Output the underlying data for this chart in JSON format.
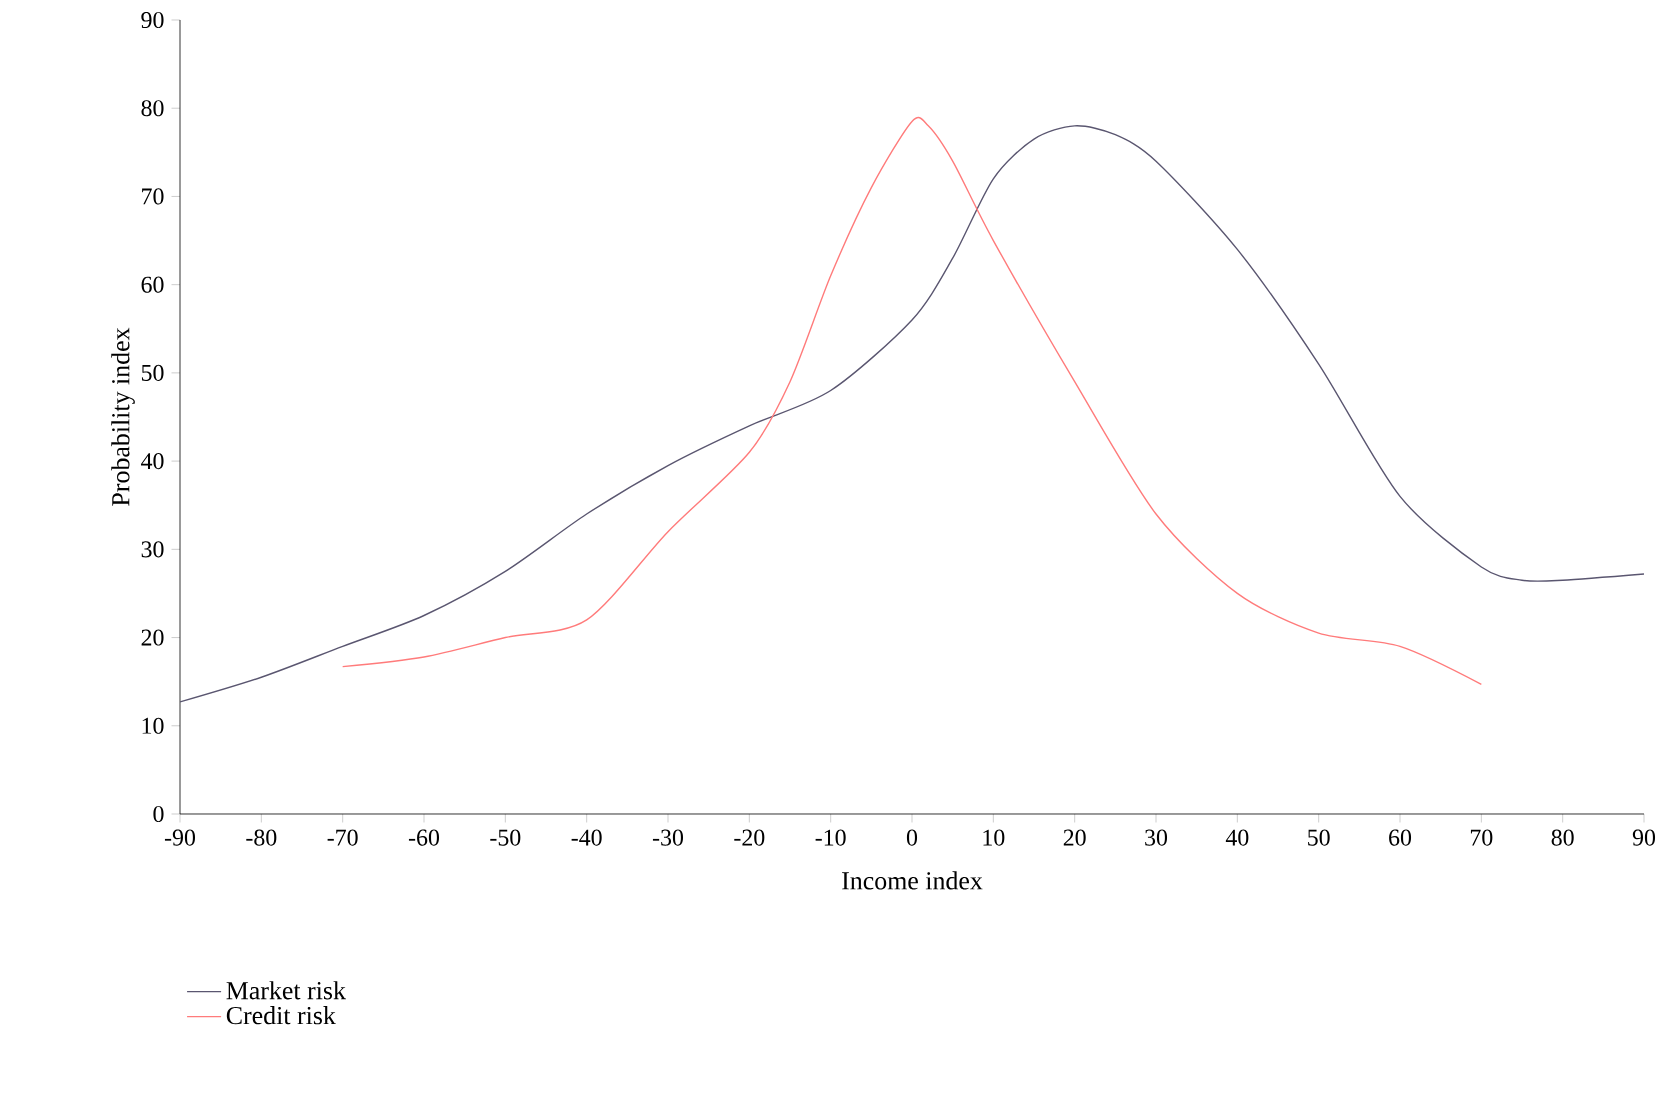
{
  "chart_data": {
    "type": "line",
    "xlabel": "Income index",
    "ylabel": "Probability index",
    "xlim": [
      -90,
      90
    ],
    "ylim": [
      0,
      90
    ],
    "xticks": [
      -90,
      -80,
      -70,
      -60,
      -50,
      -40,
      -30,
      -20,
      -10,
      0,
      10,
      20,
      30,
      40,
      50,
      60,
      70,
      80,
      90
    ],
    "yticks": [
      0,
      10,
      20,
      30,
      40,
      50,
      60,
      70,
      80,
      90
    ],
    "grid": false,
    "legend": "bottom left",
    "marker": "none",
    "line_style": "solid",
    "series": [
      {
        "name": "Market risk",
        "color": "#5a5670",
        "x": [
          -90,
          -80,
          -70,
          -60,
          -50,
          -40,
          -30,
          -20,
          -10,
          0,
          5,
          10,
          15,
          20,
          25,
          30,
          40,
          50,
          60,
          70,
          75,
          80,
          90
        ],
        "values": [
          12.7,
          15.5,
          19,
          22.5,
          27.5,
          34,
          39.5,
          44,
          48,
          56,
          63,
          72,
          76.5,
          78,
          77,
          74,
          64,
          51,
          36,
          28,
          26.5,
          26.5,
          27.2
        ]
      },
      {
        "name": "Credit risk",
        "color": "#ff7b7b",
        "x": [
          -70,
          -60,
          -50,
          -40,
          -30,
          -20,
          -15,
          -10,
          -5,
          0,
          2,
          5,
          10,
          20,
          30,
          40,
          50,
          60,
          70
        ],
        "values": [
          16.7,
          17.8,
          20,
          22,
          32,
          41,
          49,
          61,
          71,
          78.5,
          78,
          74,
          65,
          49,
          34,
          25,
          20.5,
          19,
          14.7
        ]
      }
    ]
  }
}
